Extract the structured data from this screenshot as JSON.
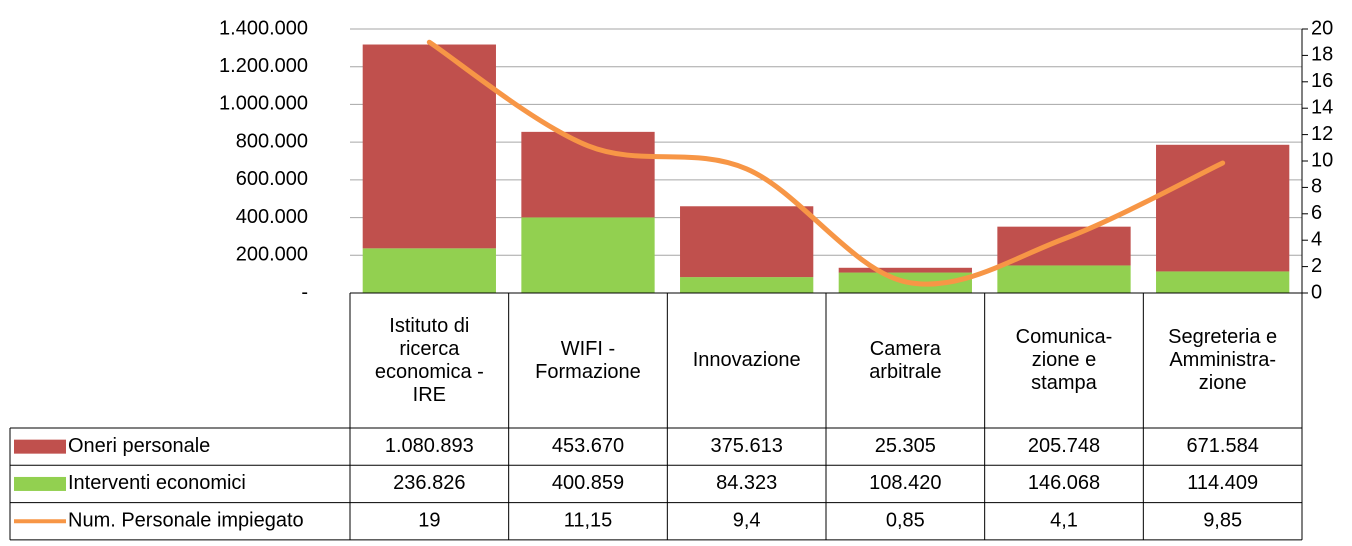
{
  "chart_data": {
    "type": "bar",
    "categories": [
      "Istituto di\nricerca\neconomica -\nIRE",
      "WIFI -\nFormazione",
      "Innovazione",
      "Camera\narbitrale",
      "Comunica-\nzione e\nstampa",
      "Segreteria e\nAmministra-\nzione"
    ],
    "series": [
      {
        "name": "Oneri personale",
        "type": "bar",
        "color": "#c0504d",
        "values": [
          1080893,
          453670,
          375613,
          25305,
          205748,
          671584
        ],
        "value_labels": [
          "1.080.893",
          "453.670",
          "375.613",
          "25.305",
          "205.748",
          "671.584"
        ]
      },
      {
        "name": "Interventi economici",
        "type": "bar",
        "color": "#92d050",
        "values": [
          236826,
          400859,
          84323,
          108420,
          146068,
          114409
        ],
        "value_labels": [
          "236.826",
          "400.859",
          "84.323",
          "108.420",
          "146.068",
          "114.409"
        ]
      },
      {
        "name": "Num. Personale impiegato",
        "type": "line",
        "axis": "y2",
        "color": "#f79646",
        "values": [
          19,
          11.15,
          9.4,
          0.85,
          4.1,
          9.85
        ],
        "value_labels": [
          "19",
          "11,15",
          "9,4",
          "0,85",
          "4,1",
          "9,85"
        ]
      }
    ],
    "ylim": [
      0,
      1400000
    ],
    "yticks": [
      {
        "value": 0,
        "label": "-"
      },
      {
        "value": 200000,
        "label": "200.000"
      },
      {
        "value": 400000,
        "label": "400.000"
      },
      {
        "value": 600000,
        "label": "600.000"
      },
      {
        "value": 800000,
        "label": "800.000"
      },
      {
        "value": 1000000,
        "label": "1.000.000"
      },
      {
        "value": 1200000,
        "label": "1.200.000"
      },
      {
        "value": 1400000,
        "label": "1.400.000"
      }
    ],
    "y2lim": [
      0,
      20
    ],
    "y2ticks": [
      0,
      2,
      4,
      6,
      8,
      10,
      12,
      14,
      16,
      18,
      20
    ],
    "grid": true
  }
}
